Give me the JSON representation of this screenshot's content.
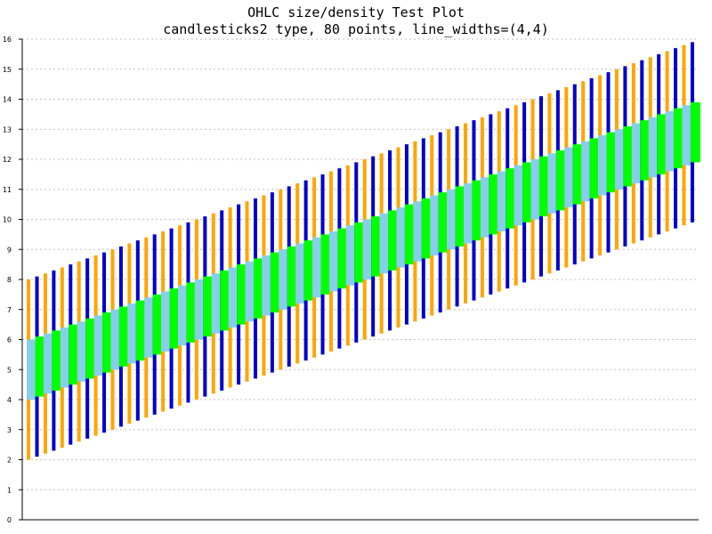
{
  "chart_data": {
    "type": "candlestick",
    "title": "OHLC size/density Test Plot",
    "subtitle": "candlesticks2 type, 80 points, line_widths=(4,4)",
    "xlabel": "",
    "ylabel": "",
    "ylim": [
      0,
      16
    ],
    "yticks": [
      0,
      1,
      2,
      3,
      4,
      5,
      6,
      7,
      8,
      9,
      10,
      11,
      12,
      13,
      14,
      15,
      16
    ],
    "grid": {
      "horizontal": true,
      "style": "dotted"
    },
    "n_points": 80,
    "x": [
      1,
      80
    ],
    "low": [
      2.0,
      9.9
    ],
    "high": [
      8.0,
      15.9
    ],
    "body_bottom": [
      4.0,
      11.9
    ],
    "body_top": [
      6.0,
      13.9
    ],
    "direction_pattern": [
      "down",
      "up"
    ],
    "colors": {
      "wick_up": "#0000cc",
      "wick_down": "#ffa500",
      "body_up": "#00ff00",
      "body_down": "#87ceeb",
      "grid": "#c0c0c0",
      "axis": "#000000"
    }
  }
}
